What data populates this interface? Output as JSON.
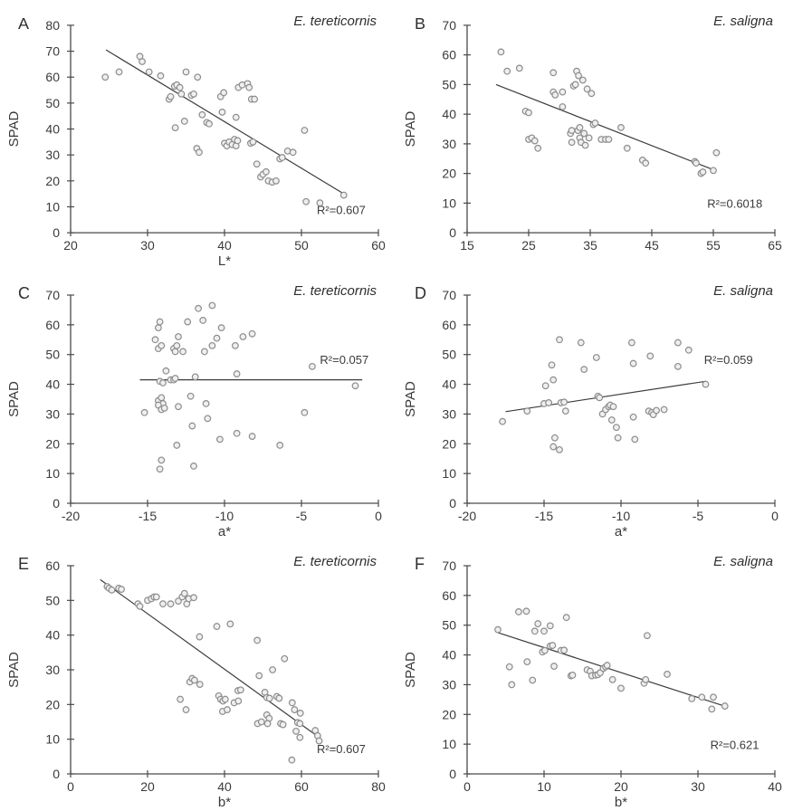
{
  "styles": {
    "background": "#ffffff",
    "axis_color": "#4a4a4a",
    "text_color": "#3a3a3a",
    "line_color": "#3c3c3c",
    "marker_fill": "#efefef",
    "marker_stroke": "#8c8c8c"
  },
  "chart_data": [
    {
      "type": "scatter",
      "id": "A",
      "species": "E. tereticornis",
      "xlabel": "L*",
      "ylabel": "SPAD",
      "xlim": [
        20,
        60
      ],
      "xticks": [
        20,
        30,
        40,
        50,
        60
      ],
      "ylim": [
        0,
        80
      ],
      "yticks": [
        0,
        10,
        20,
        30,
        40,
        50,
        60,
        70,
        80
      ],
      "r2_label": "R²=0.607",
      "r2_pos": [
        0.8,
        0.91
      ],
      "trend": {
        "x": [
          24.6,
          55.5
        ],
        "y": [
          70.5,
          15
        ]
      },
      "points": [
        [
          24.5,
          60
        ],
        [
          26.3,
          62
        ],
        [
          29,
          68
        ],
        [
          29.3,
          66
        ],
        [
          30.2,
          62
        ],
        [
          31.7,
          60.5
        ],
        [
          32.8,
          51.5
        ],
        [
          33,
          52.5
        ],
        [
          33.5,
          56.5
        ],
        [
          33.8,
          57
        ],
        [
          34.2,
          56
        ],
        [
          33.6,
          40.5
        ],
        [
          34.4,
          53.5
        ],
        [
          34.8,
          43
        ],
        [
          35,
          62
        ],
        [
          35.7,
          53
        ],
        [
          36,
          53.5
        ],
        [
          36.5,
          60
        ],
        [
          36.4,
          32.5
        ],
        [
          36.7,
          31
        ],
        [
          37.1,
          45.5
        ],
        [
          37.7,
          42.5
        ],
        [
          38,
          42
        ],
        [
          39.5,
          52.5
        ],
        [
          39.9,
          54
        ],
        [
          39.7,
          46.5
        ],
        [
          40,
          34.5
        ],
        [
          40.3,
          33.5
        ],
        [
          40.6,
          35
        ],
        [
          41,
          34
        ],
        [
          41.3,
          36
        ],
        [
          41.5,
          33.5
        ],
        [
          41.7,
          35.5
        ],
        [
          41.5,
          44.5
        ],
        [
          41.8,
          56
        ],
        [
          42.3,
          57
        ],
        [
          43,
          57.5
        ],
        [
          43.2,
          56
        ],
        [
          43.4,
          34.5
        ],
        [
          43.7,
          35
        ],
        [
          43.5,
          51.5
        ],
        [
          43.9,
          51.5
        ],
        [
          44.2,
          26.5
        ],
        [
          44.7,
          21.5
        ],
        [
          45,
          22.5
        ],
        [
          45.4,
          23.5
        ],
        [
          45.7,
          20
        ],
        [
          46.2,
          19.5
        ],
        [
          46.7,
          20
        ],
        [
          47.2,
          28.5
        ],
        [
          47.5,
          29
        ],
        [
          48.2,
          31.5
        ],
        [
          48.9,
          31
        ],
        [
          50.4,
          39.5
        ],
        [
          50.6,
          12
        ],
        [
          52.4,
          11.5
        ],
        [
          55.5,
          14.5
        ]
      ]
    },
    {
      "type": "scatter",
      "id": "B",
      "species": "E. saligna",
      "xlabel": "",
      "ylabel": "SPAD",
      "xlim": [
        15,
        65
      ],
      "xticks": [
        15,
        25,
        35,
        45,
        55,
        65
      ],
      "ylim": [
        0,
        70
      ],
      "yticks": [
        0,
        10,
        20,
        30,
        40,
        50,
        60,
        70
      ],
      "r2_label": "R²=0.6018",
      "r2_pos": [
        0.78,
        0.88
      ],
      "trend": {
        "x": [
          19.7,
          55.3
        ],
        "y": [
          50,
          21
        ]
      },
      "points": [
        [
          20.5,
          61
        ],
        [
          21.5,
          54.5
        ],
        [
          23.5,
          55.5
        ],
        [
          24.5,
          41
        ],
        [
          25,
          40.5
        ],
        [
          25,
          31.5
        ],
        [
          25.5,
          32
        ],
        [
          26,
          31
        ],
        [
          26.5,
          28.5
        ],
        [
          29,
          54
        ],
        [
          29,
          47.5
        ],
        [
          29.3,
          46.5
        ],
        [
          30.5,
          47.5
        ],
        [
          30.5,
          42.5
        ],
        [
          31.8,
          33.5
        ],
        [
          32,
          34.5
        ],
        [
          32,
          30.5
        ],
        [
          32.3,
          49.5
        ],
        [
          32.6,
          50
        ],
        [
          32.8,
          54.5
        ],
        [
          33.1,
          53
        ],
        [
          33,
          34.5
        ],
        [
          33.3,
          35.5
        ],
        [
          33.3,
          32
        ],
        [
          33.5,
          30.5
        ],
        [
          33.8,
          51.5
        ],
        [
          34,
          33.5
        ],
        [
          34.2,
          29.5
        ],
        [
          34.5,
          48.5
        ],
        [
          34.8,
          32
        ],
        [
          35.2,
          47
        ],
        [
          35.5,
          36.5
        ],
        [
          35.8,
          37
        ],
        [
          36.8,
          31.5
        ],
        [
          37.5,
          31.5
        ],
        [
          38,
          31.5
        ],
        [
          40,
          35.5
        ],
        [
          41,
          28.5
        ],
        [
          43.5,
          24.5
        ],
        [
          44,
          23.5
        ],
        [
          52,
          24
        ],
        [
          52.2,
          23.5
        ],
        [
          53,
          20
        ],
        [
          53.3,
          20.5
        ],
        [
          55,
          21
        ],
        [
          55.5,
          27
        ]
      ]
    },
    {
      "type": "scatter",
      "id": "C",
      "species": "E. tereticornis",
      "xlabel": "a*",
      "ylabel": "SPAD",
      "xlim": [
        -20,
        0
      ],
      "xticks": [
        -20,
        -15,
        -10,
        -5,
        0
      ],
      "ylim": [
        0,
        70
      ],
      "yticks": [
        0,
        10,
        20,
        30,
        40,
        50,
        60,
        70
      ],
      "r2_label": "R²=0.057",
      "r2_pos": [
        0.81,
        0.33
      ],
      "trend": {
        "x": [
          -15.5,
          -1.05
        ],
        "y": [
          41.5,
          41.5
        ]
      },
      "points": [
        [
          -15.2,
          30.5
        ],
        [
          -14.5,
          55
        ],
        [
          -14.3,
          59
        ],
        [
          -14.3,
          52
        ],
        [
          -14.1,
          53
        ],
        [
          -14.2,
          61
        ],
        [
          -14.2,
          41
        ],
        [
          -14,
          40.5
        ],
        [
          -14.3,
          34.5
        ],
        [
          -14.1,
          35.5
        ],
        [
          -14,
          33.5
        ],
        [
          -14.3,
          33
        ],
        [
          -14.1,
          31.5
        ],
        [
          -13.9,
          32
        ],
        [
          -14.1,
          14.5
        ],
        [
          -14.2,
          11.5
        ],
        [
          -13.8,
          44.5
        ],
        [
          -13.5,
          41.5
        ],
        [
          -13.3,
          41.5
        ],
        [
          -13.2,
          42
        ],
        [
          -13.3,
          52
        ],
        [
          -13.2,
          51
        ],
        [
          -13.1,
          53
        ],
        [
          -13,
          56
        ],
        [
          -13.1,
          19.5
        ],
        [
          -13,
          32.5
        ],
        [
          -12.7,
          51
        ],
        [
          -12.4,
          61
        ],
        [
          -12.2,
          36
        ],
        [
          -12.1,
          26
        ],
        [
          -12,
          12.5
        ],
        [
          -11.7,
          65.5
        ],
        [
          -11.9,
          42.5
        ],
        [
          -11.4,
          61.5
        ],
        [
          -11.3,
          51
        ],
        [
          -11.2,
          33.5
        ],
        [
          -11.1,
          28.5
        ],
        [
          -10.8,
          66.5
        ],
        [
          -10.8,
          53
        ],
        [
          -10.5,
          55.5
        ],
        [
          -10.2,
          59
        ],
        [
          -10.3,
          21.5
        ],
        [
          -9.3,
          53
        ],
        [
          -9.2,
          43.5
        ],
        [
          -9.2,
          23.5
        ],
        [
          -8.8,
          56
        ],
        [
          -8.2,
          57
        ],
        [
          -8.2,
          22.5
        ],
        [
          -6.4,
          19.5
        ],
        [
          -4.8,
          30.5
        ],
        [
          -4.3,
          46
        ],
        [
          -1.5,
          39.5
        ]
      ]
    },
    {
      "type": "scatter",
      "id": "D",
      "species": "E. saligna",
      "xlabel": "a*",
      "ylabel": "SPAD",
      "xlim": [
        -20,
        0
      ],
      "xticks": [
        -20,
        -15,
        -10,
        -5,
        0
      ],
      "ylim": [
        0,
        70
      ],
      "yticks": [
        0,
        10,
        20,
        30,
        40,
        50,
        60,
        70
      ],
      "r2_label": "R²=0.059",
      "r2_pos": [
        0.77,
        0.33
      ],
      "trend": {
        "x": [
          -17.5,
          -4.5
        ],
        "y": [
          30.8,
          41
        ]
      },
      "points": [
        [
          -17.7,
          27.5
        ],
        [
          -16.1,
          31
        ],
        [
          -15,
          33.5
        ],
        [
          -14.7,
          33.8
        ],
        [
          -14.9,
          39.5
        ],
        [
          -14.5,
          46.5
        ],
        [
          -14.4,
          41.5
        ],
        [
          -14.3,
          22
        ],
        [
          -14.4,
          19
        ],
        [
          -14,
          18
        ],
        [
          -14,
          55
        ],
        [
          -13.9,
          33.8
        ],
        [
          -13.7,
          34
        ],
        [
          -13.6,
          31
        ],
        [
          -12.6,
          54
        ],
        [
          -12.4,
          45
        ],
        [
          -11.6,
          49
        ],
        [
          -11.5,
          36
        ],
        [
          -11.4,
          35.5
        ],
        [
          -11.2,
          30
        ],
        [
          -11,
          31.5
        ],
        [
          -10.8,
          32.5
        ],
        [
          -10.7,
          33
        ],
        [
          -10.5,
          32.5
        ],
        [
          -10.6,
          28
        ],
        [
          -10.3,
          25.5
        ],
        [
          -10.2,
          22
        ],
        [
          -9.3,
          54
        ],
        [
          -9.2,
          47
        ],
        [
          -9.2,
          29
        ],
        [
          -9.1,
          21.5
        ],
        [
          -8.1,
          49.5
        ],
        [
          -8.2,
          31
        ],
        [
          -8,
          30.5
        ],
        [
          -7.9,
          29.8
        ],
        [
          -7.7,
          31.2
        ],
        [
          -7.2,
          31.5
        ],
        [
          -6.3,
          54
        ],
        [
          -6.3,
          46
        ],
        [
          -5.6,
          51.5
        ],
        [
          -4.5,
          40
        ]
      ]
    },
    {
      "type": "scatter",
      "id": "E",
      "species": "E. tereticornis",
      "xlabel": "b*",
      "ylabel": "SPAD",
      "xlim": [
        0,
        80
      ],
      "xticks": [
        0,
        20,
        40,
        60,
        80
      ],
      "ylim": [
        0,
        60
      ],
      "yticks": [
        0,
        10,
        20,
        30,
        40,
        50,
        60
      ],
      "r2_label": "R²=0.607",
      "r2_pos": [
        0.8,
        0.9
      ],
      "trend": {
        "x": [
          7.7,
          64
        ],
        "y": [
          56,
          11
        ]
      },
      "points": [
        [
          9.5,
          54
        ],
        [
          10,
          53.5
        ],
        [
          10.7,
          53
        ],
        [
          12.5,
          53.5
        ],
        [
          13.2,
          53.2
        ],
        [
          17.5,
          49
        ],
        [
          18,
          48.3
        ],
        [
          20,
          50
        ],
        [
          21,
          50.5
        ],
        [
          21.7,
          51
        ],
        [
          22.3,
          51
        ],
        [
          24,
          49
        ],
        [
          26,
          49
        ],
        [
          28,
          49.8
        ],
        [
          29,
          51
        ],
        [
          29.6,
          52
        ],
        [
          30.2,
          49
        ],
        [
          30.7,
          50.5
        ],
        [
          32,
          50.8
        ],
        [
          28.5,
          21.5
        ],
        [
          30,
          18.5
        ],
        [
          31,
          26.5
        ],
        [
          31.6,
          27.5
        ],
        [
          32.2,
          27
        ],
        [
          33.6,
          25.8
        ],
        [
          33.5,
          39.5
        ],
        [
          38,
          42.5
        ],
        [
          38.5,
          22.5
        ],
        [
          39,
          21.5
        ],
        [
          39.6,
          21
        ],
        [
          40.2,
          21.5
        ],
        [
          39.5,
          18
        ],
        [
          40.7,
          18.5
        ],
        [
          41.5,
          43.2
        ],
        [
          42.5,
          20.5
        ],
        [
          43.6,
          21
        ],
        [
          43.5,
          24
        ],
        [
          44.2,
          24.2
        ],
        [
          48.5,
          38.5
        ],
        [
          49,
          28.3
        ],
        [
          48.6,
          14.5
        ],
        [
          49.6,
          15
        ],
        [
          50.5,
          23.5
        ],
        [
          51,
          22
        ],
        [
          51.7,
          21.8
        ],
        [
          51,
          17
        ],
        [
          51.6,
          16
        ],
        [
          51.2,
          14.5
        ],
        [
          52.5,
          30
        ],
        [
          53.6,
          22.3
        ],
        [
          54.2,
          21.8
        ],
        [
          54.6,
          14.5
        ],
        [
          55.2,
          14.2
        ],
        [
          55.6,
          33.2
        ],
        [
          57.6,
          20.5
        ],
        [
          58.2,
          18.5
        ],
        [
          57.5,
          4
        ],
        [
          58.6,
          12.3
        ],
        [
          59,
          14.8
        ],
        [
          59.6,
          14.5
        ],
        [
          59.7,
          17.5
        ],
        [
          59.6,
          10.5
        ],
        [
          63.6,
          12.5
        ],
        [
          64.2,
          11
        ],
        [
          64.6,
          9.5
        ]
      ]
    },
    {
      "type": "scatter",
      "id": "F",
      "species": "E. saligna",
      "xlabel": "b*",
      "ylabel": "SPAD",
      "xlim": [
        0,
        40
      ],
      "xticks": [
        0,
        10,
        20,
        30,
        40
      ],
      "ylim": [
        0,
        70
      ],
      "yticks": [
        0,
        10,
        20,
        30,
        40,
        50,
        60,
        70
      ],
      "r2_label": "R²=0.621",
      "r2_pos": [
        0.79,
        0.88
      ],
      "trend": {
        "x": [
          4,
          33.8
        ],
        "y": [
          47.5,
          22.5
        ]
      },
      "points": [
        [
          4,
          48.5
        ],
        [
          5.5,
          36
        ],
        [
          5.8,
          30
        ],
        [
          6.7,
          54.5
        ],
        [
          7.7,
          54.7
        ],
        [
          7.8,
          37.7
        ],
        [
          8.5,
          31.5
        ],
        [
          8.8,
          48
        ],
        [
          9.2,
          50.5
        ],
        [
          9.8,
          41
        ],
        [
          10.1,
          41.5
        ],
        [
          10,
          48
        ],
        [
          10.8,
          49.8
        ],
        [
          10.8,
          43
        ],
        [
          11.1,
          43.2
        ],
        [
          11.3,
          36.2
        ],
        [
          12.2,
          41.5
        ],
        [
          12.6,
          41.6
        ],
        [
          12.9,
          52.6
        ],
        [
          13.5,
          33
        ],
        [
          13.7,
          33.2
        ],
        [
          15.6,
          35
        ],
        [
          16,
          34.5
        ],
        [
          16.2,
          33
        ],
        [
          16.7,
          33.2
        ],
        [
          17,
          33.4
        ],
        [
          17.3,
          34
        ],
        [
          17.7,
          35.5
        ],
        [
          18,
          36
        ],
        [
          18.2,
          36.5
        ],
        [
          18.9,
          31.7
        ],
        [
          20,
          28.8
        ],
        [
          23,
          30.5
        ],
        [
          23.2,
          31.7
        ],
        [
          23.4,
          46.5
        ],
        [
          26,
          33.5
        ],
        [
          29.2,
          25.3
        ],
        [
          30.5,
          25.8
        ],
        [
          31.8,
          21.8
        ],
        [
          32,
          25.8
        ],
        [
          33.5,
          22.8
        ]
      ]
    }
  ]
}
